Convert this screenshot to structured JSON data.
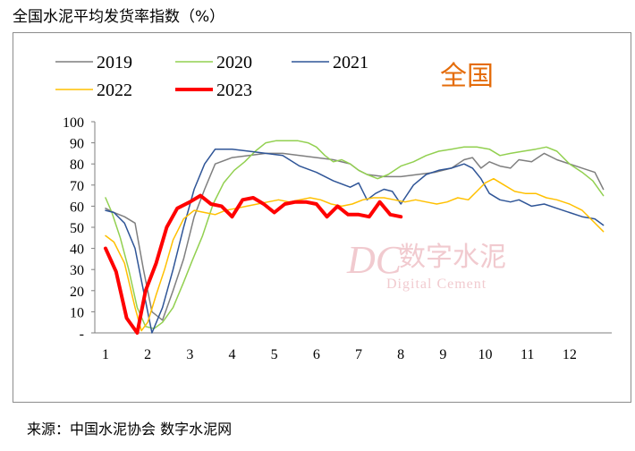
{
  "page_title": "全国水泥平均发货率指数（%）",
  "source_text": "来源：中国水泥协会  数字水泥网",
  "region_label": "全国",
  "watermark": {
    "logo": "DC",
    "cn": "数字水泥",
    "en": "Digital Cement"
  },
  "colors": {
    "2019": "#7f7f7f",
    "2020": "#92d050",
    "2021": "#2f5597",
    "2022": "#ffc000",
    "2023": "#ff0000",
    "region_label": "#e46c0a",
    "watermark": "#e6a0a8"
  },
  "chart_data": {
    "type": "line",
    "title": "全国水泥平均发货率指数（%）",
    "xlabel": "",
    "ylabel": "",
    "ylim": [
      0,
      100
    ],
    "y_ticks": [
      "-",
      "10",
      "20",
      "30",
      "40",
      "50",
      "60",
      "70",
      "80",
      "90",
      "100"
    ],
    "x_ticks": [
      "1",
      "2",
      "3",
      "4",
      "5",
      "6",
      "7",
      "8",
      "9",
      "10",
      "11",
      "12"
    ],
    "x_domain": [
      1,
      13
    ],
    "grid": false,
    "legend": "top",
    "series": [
      {
        "name": "2019",
        "x": [
          1,
          1.2,
          1.45,
          1.7,
          1.9,
          2.1,
          2.35,
          2.6,
          2.85,
          3.1,
          3.35,
          3.6,
          4.0,
          4.4,
          4.8,
          5.2,
          5.6,
          6.0,
          6.4,
          6.8,
          7.0,
          7.2,
          7.6,
          8.0,
          8.4,
          8.8,
          9.2,
          9.5,
          9.7,
          9.9,
          10.1,
          10.35,
          10.6,
          10.8,
          11.1,
          11.4,
          11.7,
          12.0,
          12.3,
          12.6,
          12.8
        ],
        "values": [
          59,
          57,
          55,
          52,
          30,
          10,
          6,
          20,
          35,
          55,
          68,
          80,
          83,
          84,
          85,
          85,
          84,
          83,
          82,
          80,
          77,
          75,
          74,
          74,
          75,
          76,
          78,
          82,
          83,
          78,
          81,
          79,
          78,
          82,
          81,
          85,
          82,
          80,
          78,
          76,
          68
        ]
      },
      {
        "name": "2020",
        "x": [
          1,
          1.15,
          1.35,
          1.55,
          1.75,
          1.95,
          2.15,
          2.35,
          2.6,
          2.85,
          3.05,
          3.3,
          3.55,
          3.8,
          4.05,
          4.3,
          4.55,
          4.8,
          5.05,
          5.3,
          5.55,
          5.8,
          6.0,
          6.2,
          6.4,
          6.6,
          6.8,
          7.0,
          7.2,
          7.45,
          7.7,
          8.0,
          8.3,
          8.6,
          8.9,
          9.2,
          9.5,
          9.8,
          10.1,
          10.35,
          10.6,
          10.9,
          11.2,
          11.45,
          11.7,
          12.0,
          12.3,
          12.55,
          12.8
        ],
        "values": [
          64,
          57,
          45,
          30,
          12,
          3,
          2,
          5,
          12,
          24,
          34,
          46,
          61,
          71,
          77,
          81,
          86,
          90,
          91,
          91,
          91,
          90,
          88,
          84,
          81,
          82,
          80,
          77,
          75,
          73,
          75,
          79,
          81,
          84,
          86,
          87,
          88,
          88,
          87,
          84,
          85,
          86,
          87,
          88,
          86,
          80,
          76,
          72,
          65
        ]
      },
      {
        "name": "2021",
        "x": [
          1,
          1.2,
          1.45,
          1.7,
          1.9,
          2.1,
          2.35,
          2.6,
          2.85,
          3.1,
          3.35,
          3.6,
          4.0,
          4.4,
          4.8,
          5.2,
          5.6,
          6.0,
          6.4,
          6.8,
          7.0,
          7.2,
          7.4,
          7.6,
          7.8,
          8.0,
          8.3,
          8.6,
          8.9,
          9.2,
          9.5,
          9.7,
          9.9,
          10.1,
          10.35,
          10.6,
          10.8,
          11.1,
          11.4,
          11.7,
          12.0,
          12.3,
          12.6,
          12.8
        ],
        "values": [
          58,
          57,
          52,
          40,
          20,
          0,
          12,
          30,
          50,
          68,
          80,
          87,
          87,
          86,
          85,
          84,
          79,
          76,
          72,
          69,
          71,
          63,
          66,
          68,
          67,
          61,
          70,
          75,
          77,
          78,
          80,
          78,
          73,
          66,
          63,
          62,
          63,
          60,
          61,
          59,
          57,
          55,
          54,
          51
        ]
      },
      {
        "name": "2022",
        "x": [
          1,
          1.2,
          1.45,
          1.7,
          1.85,
          2.0,
          2.2,
          2.4,
          2.6,
          2.85,
          3.1,
          3.35,
          3.6,
          3.85,
          4.1,
          4.35,
          4.6,
          4.85,
          5.1,
          5.35,
          5.6,
          5.85,
          6.1,
          6.35,
          6.6,
          6.85,
          7.1,
          7.35,
          7.6,
          7.85,
          8.1,
          8.35,
          8.6,
          8.85,
          9.1,
          9.35,
          9.6,
          9.8,
          10.0,
          10.2,
          10.45,
          10.7,
          10.95,
          11.2,
          11.45,
          11.7,
          12.0,
          12.3,
          12.55,
          12.8
        ],
        "values": [
          46,
          43,
          33,
          12,
          1,
          5,
          18,
          30,
          44,
          54,
          58,
          57,
          56,
          58,
          59,
          60,
          61,
          62,
          63,
          62,
          63,
          64,
          63,
          61,
          60,
          61,
          63,
          64,
          64,
          63,
          62,
          63,
          62,
          61,
          62,
          64,
          63,
          67,
          71,
          73,
          70,
          67,
          66,
          66,
          64,
          63,
          61,
          58,
          53,
          48
        ]
      },
      {
        "name": "2023",
        "x": [
          1.0,
          1.25,
          1.5,
          1.75,
          1.95,
          2.2,
          2.45,
          2.7,
          3.0,
          3.25,
          3.5,
          3.75,
          4.0,
          4.25,
          4.5,
          4.75,
          5.0,
          5.25,
          5.5,
          5.75,
          6.0,
          6.25,
          6.5,
          6.75,
          7.0,
          7.25,
          7.5,
          7.75,
          8.0
        ],
        "values": [
          40,
          29,
          7,
          0,
          20,
          33,
          50,
          59,
          62,
          65,
          61,
          60,
          55,
          63,
          64,
          61,
          57,
          61,
          62,
          62,
          61,
          55,
          60,
          56,
          56,
          55,
          62,
          56,
          55
        ]
      }
    ]
  }
}
